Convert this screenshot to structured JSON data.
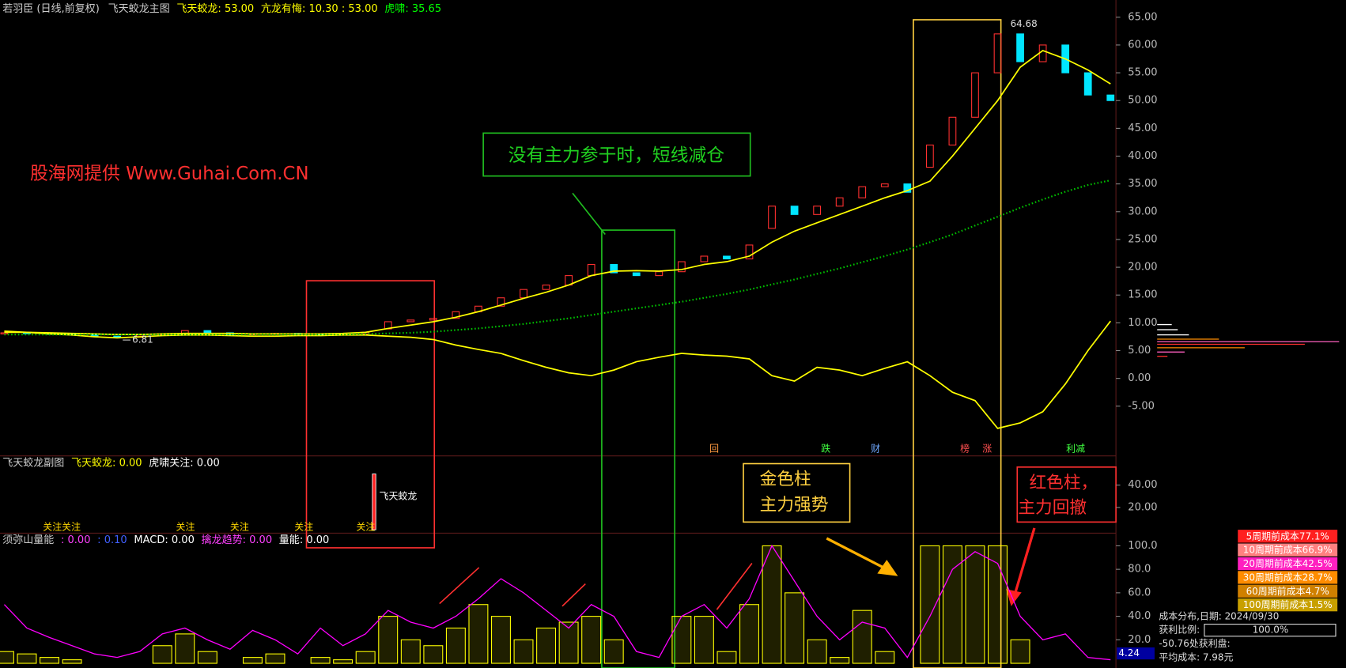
{
  "header": {
    "title": "若羽臣 (日线,前复权)",
    "indicator": "飞天蛟龙主图"
  },
  "chart_data": [
    {
      "type": "candlestick",
      "legend": [
        {
          "text": "飞天蛟龙: 53.00",
          "color": "#ffff00"
        },
        {
          "text": "亢龙有悔: 10.30 : 53.00",
          "color": "#ffff00"
        },
        {
          "text": "虎啸: 35.65",
          "color": "#00ff00"
        }
      ],
      "open": [
        8.0,
        8.2,
        8.1,
        8.0,
        7.9,
        7.6,
        7.4,
        7.8,
        8.0,
        8.6,
        8.2,
        7.9,
        8.0,
        8.1,
        8.0,
        7.9,
        8.0,
        8.9,
        10.2,
        10.5,
        10.8,
        12.0,
        13.0,
        14.5,
        16.0,
        16.8,
        18.5,
        20.5,
        19.0,
        18.5,
        19.2,
        21.0,
        22.0,
        21.5,
        27.0,
        31.0,
        29.5,
        31.0,
        32.5,
        34.5,
        35.0,
        38.0,
        42.0,
        47.0,
        55.0,
        62.0,
        57.0,
        60.0,
        55.0,
        51.0
      ],
      "close": [
        8.2,
        8.1,
        8.0,
        7.9,
        7.6,
        7.4,
        7.8,
        8.0,
        8.6,
        8.2,
        7.9,
        8.0,
        8.1,
        8.0,
        7.9,
        8.0,
        8.3,
        10.2,
        10.5,
        10.8,
        12.0,
        13.0,
        14.5,
        16.0,
        16.8,
        18.5,
        20.5,
        19.0,
        18.5,
        19.2,
        21.0,
        22.0,
        21.5,
        24.0,
        31.0,
        29.5,
        31.0,
        32.5,
        34.5,
        35.0,
        33.5,
        42.0,
        47.0,
        55.0,
        62.0,
        57.0,
        60.0,
        55.0,
        51.0,
        50.0
      ],
      "up_color": "#ff3030",
      "down_color": "#00e5ff",
      "series": [
        {
          "color": "#ffff00",
          "values": [
            8.3,
            8.3,
            8.2,
            8.1,
            8.0,
            7.9,
            7.9,
            8.0,
            8.1,
            8.1,
            8.1,
            8.0,
            8.0,
            8.0,
            8.0,
            8.1,
            8.3,
            9.0,
            9.6,
            10.2,
            11.0,
            12.0,
            13.2,
            14.4,
            15.5,
            16.8,
            18.5,
            19.3,
            19.4,
            19.3,
            19.6,
            20.5,
            21.0,
            22.0,
            24.5,
            26.5,
            28.0,
            29.5,
            31.0,
            32.5,
            33.8,
            35.5,
            40.0,
            45.0,
            50.0,
            56.0,
            59.0,
            57.5,
            55.5,
            53.0
          ]
        },
        {
          "color": "#ffff00",
          "values": [
            8.5,
            8.3,
            8.0,
            7.8,
            7.5,
            7.3,
            7.5,
            7.7,
            7.8,
            7.8,
            7.7,
            7.6,
            7.6,
            7.7,
            7.7,
            7.8,
            7.8,
            7.6,
            7.4,
            7.0,
            6.0,
            5.2,
            4.5,
            3.2,
            2.0,
            1.0,
            0.5,
            1.5,
            3.0,
            3.8,
            4.5,
            4.2,
            4.0,
            3.5,
            0.5,
            -0.5,
            2.0,
            1.5,
            0.5,
            1.8,
            3.0,
            0.5,
            -2.5,
            -4.0,
            -9.0,
            -8.0,
            -6.0,
            -1.0,
            5.0,
            10.3
          ]
        },
        {
          "color": "#00c000",
          "style": "dotted",
          "values": [
            7.9,
            7.9,
            7.9,
            7.9,
            7.9,
            7.9,
            7.9,
            7.9,
            7.9,
            7.9,
            7.9,
            7.9,
            7.9,
            7.9,
            7.9,
            7.9,
            8.0,
            8.1,
            8.2,
            8.4,
            8.7,
            9.0,
            9.4,
            9.8,
            10.3,
            10.8,
            11.4,
            12.0,
            12.6,
            13.2,
            13.8,
            14.5,
            15.2,
            16.0,
            16.9,
            17.8,
            18.8,
            19.8,
            20.9,
            22.0,
            23.2,
            24.5,
            25.9,
            27.5,
            29.1,
            30.7,
            32.2,
            33.6,
            34.8,
            35.65
          ]
        }
      ],
      "ylim": [
        -13.8,
        68.1
      ],
      "yticks": [
        {
          "value": 65,
          "label": "65.00"
        },
        {
          "value": 60,
          "label": "60.00"
        },
        {
          "value": 55,
          "label": "55.00"
        },
        {
          "value": 50,
          "label": "50.00"
        },
        {
          "value": 45,
          "label": "45.00"
        },
        {
          "value": 40,
          "label": "40.00"
        },
        {
          "value": 35,
          "label": "35.00"
        },
        {
          "value": 30,
          "label": "30.00"
        },
        {
          "value": 25,
          "label": "25.00"
        },
        {
          "value": 20,
          "label": "20.00"
        },
        {
          "value": 15,
          "label": "15.00"
        },
        {
          "value": 10,
          "label": "10.00"
        },
        {
          "value": 5,
          "label": "5.00"
        },
        {
          "value": 0,
          "label": "0.00"
        },
        {
          "value": -5,
          "label": "-5.00"
        }
      ],
      "annotations": [
        "64.68",
        "6.81"
      ],
      "signals": [
        {
          "text": "回",
          "color": "#ff9a40"
        },
        {
          "text": "跌",
          "color": "#40ff40"
        },
        {
          "text": "财",
          "color": "#6fa8ff"
        },
        {
          "text": "榜",
          "color": "#ff5050"
        },
        {
          "text": "涨",
          "color": "#ff5050"
        },
        {
          "text": "利减",
          "color": "#40ff40"
        }
      ]
    },
    {
      "type": "bar",
      "title": "飞天蛟龙副图",
      "legend": [
        {
          "text": "飞天蛟龙: 0.00",
          "color": "#ffff00"
        },
        {
          "text": "虎啸关注: 0.00",
          "color": "#ffffff"
        }
      ],
      "values": [
        null,
        null,
        null,
        null,
        null,
        null,
        null,
        null,
        null,
        null,
        null,
        null,
        null,
        null,
        null,
        null,
        50,
        null,
        null,
        null,
        null,
        null,
        null,
        null,
        null,
        null,
        null,
        null,
        null,
        null,
        null,
        null,
        null,
        null,
        null,
        null,
        null,
        null,
        null,
        null,
        null,
        null,
        null,
        null,
        null,
        null,
        null,
        null,
        null,
        null
      ],
      "color": "#ff2020",
      "bar_label": "飞天蛟龙",
      "ylim": [
        -2.3,
        65.4
      ],
      "yticks": [
        {
          "value": 40,
          "label": "40.00"
        },
        {
          "value": 20,
          "label": "20.00"
        }
      ],
      "signals": [
        "关注关注",
        "关注",
        "关注",
        "关注",
        "关注"
      ]
    },
    {
      "type": "line",
      "title": "须弥山量能",
      "legend": [
        {
          "text": ": 0.00",
          "color": "#ff40ff"
        },
        {
          "text": ": 0.10",
          "color": "#4060ff"
        },
        {
          "text": "MACD: 0.00",
          "color": "#ffffff"
        },
        {
          "text": "擒龙趋势: 0.00",
          "color": "#ff40ff"
        },
        {
          "text": "量能: 0.00",
          "color": "#ffffff"
        }
      ],
      "series": [
        {
          "color": "#ffff00",
          "kind": "bar",
          "values": [
            10,
            8,
            5,
            3,
            0,
            0,
            0,
            15,
            25,
            10,
            0,
            5,
            8,
            0,
            5,
            3,
            10,
            40,
            20,
            15,
            30,
            50,
            40,
            20,
            30,
            35,
            40,
            20,
            0,
            0,
            40,
            40,
            10,
            50,
            100,
            60,
            20,
            5,
            45,
            10,
            0,
            100,
            100,
            100,
            100,
            20,
            0,
            0,
            0,
            0
          ]
        },
        {
          "color": "#ff00ff",
          "values": [
            50,
            30,
            22,
            15,
            8,
            5,
            10,
            25,
            30,
            20,
            12,
            28,
            20,
            8,
            30,
            15,
            25,
            45,
            35,
            30,
            40,
            55,
            72,
            60,
            45,
            30,
            50,
            40,
            10,
            5,
            40,
            50,
            30,
            55,
            100,
            70,
            40,
            20,
            35,
            30,
            5,
            40,
            80,
            95,
            85,
            40,
            20,
            25,
            5,
            3
          ]
        }
      ],
      "ylim": [
        -4,
        110
      ],
      "yticks": [
        {
          "value": 100,
          "label": "100.0"
        },
        {
          "value": 80,
          "label": "80.0"
        },
        {
          "value": 60,
          "label": "60.0"
        },
        {
          "value": 40,
          "label": "40.0"
        },
        {
          "value": 20,
          "label": "20.0"
        }
      ],
      "last_label": "4.24"
    }
  ],
  "notes": {
    "watermark": "股海网提供 Www.Guhai.Com.CN",
    "green": "没有主力参于时，短线减仓",
    "gold": [
      "金色柱",
      "主力强势"
    ],
    "red": [
      "红色柱，",
      "主力回撤"
    ]
  },
  "cost_panel": {
    "rows": [
      {
        "text": "5周期前成本77.1%",
        "color": "#ff2020"
      },
      {
        "text": "10周期前成本66.9%",
        "color": "#ff8080"
      },
      {
        "text": "20周期前成本42.5%",
        "color": "#ff20c0"
      },
      {
        "text": "30周期前成本28.7%",
        "color": "#ff8c00"
      },
      {
        "text": "60周期前成本4.7%",
        "color": "#d08000"
      },
      {
        "text": "100周期前成本1.5%",
        "color": "#c8a000"
      }
    ],
    "date": "成本分布,日期: 2024/09/30",
    "profit_label": "获利比例:",
    "profit_value": "100.0%",
    "profit_at": "-50.76处获利盘:",
    "avg_cost": "平均成本: 7.98元"
  }
}
